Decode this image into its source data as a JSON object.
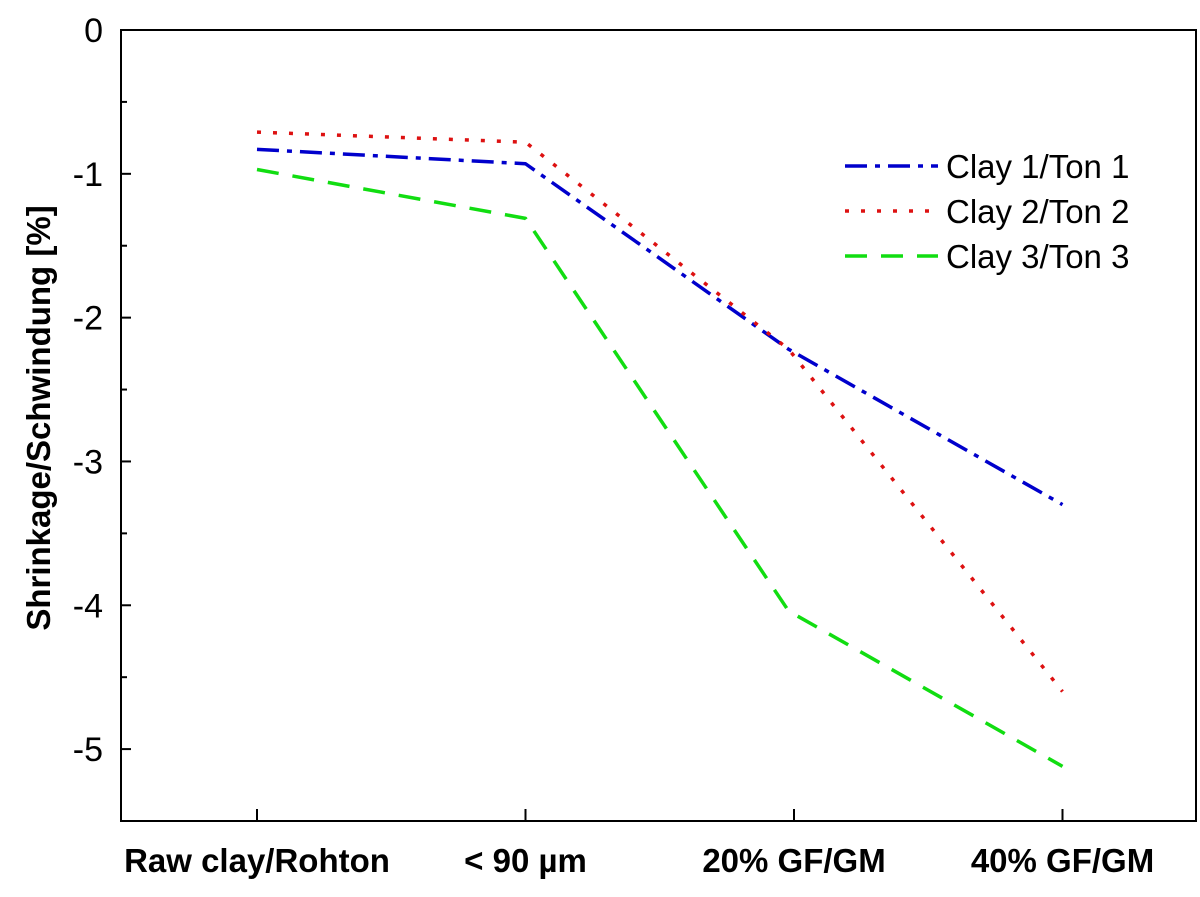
{
  "chart_data": {
    "type": "line",
    "title": "",
    "xlabel": "",
    "ylabel": "Shrinkage/Schwindung [%]",
    "categories": [
      "Raw clay/Rohton",
      "< 90 µm",
      "20% GF/GM",
      "40% GF/GM"
    ],
    "ylim": [
      -5.5,
      0
    ],
    "yticks": [
      0,
      -1,
      -2,
      -3,
      -4,
      -5
    ],
    "ytick_labels": [
      "0",
      "-1",
      "-2",
      "-3",
      "-4",
      "-5"
    ],
    "grid": false,
    "legend_position": "top-right",
    "series": [
      {
        "name": "Clay 1/Ton 1",
        "color": "#0000cc",
        "dash": "dash-dot",
        "x": [
          0,
          1,
          1.98,
          3.0
        ],
        "values": [
          -0.83,
          -0.93,
          -2.22,
          -3.3
        ]
      },
      {
        "name": "Clay 2/Ton 2",
        "color": "#dd1111",
        "dash": "dotted",
        "x": [
          0,
          1,
          1.98,
          3.0
        ],
        "values": [
          -0.71,
          -0.78,
          -2.22,
          -4.6
        ]
      },
      {
        "name": "Clay 3/Ton 3",
        "color": "#11dd11",
        "dash": "dashed",
        "x": [
          0,
          1,
          1.98,
          3.0
        ],
        "values": [
          -0.97,
          -1.31,
          -4.04,
          -5.12
        ]
      }
    ]
  }
}
